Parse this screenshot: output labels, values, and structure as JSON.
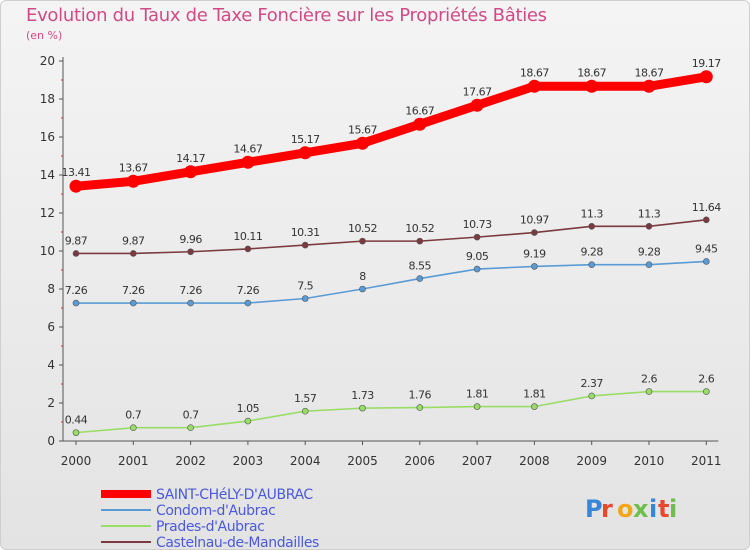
{
  "chart_data": {
    "type": "line",
    "title": "Evolution du Taux de Taxe Foncière sur les Propriétés Bâties",
    "unit_label": "(en %)",
    "xlabel": "",
    "ylabel": "",
    "x": [
      "2000",
      "2001",
      "2002",
      "2003",
      "2004",
      "2005",
      "2006",
      "2007",
      "2008",
      "2009",
      "2010",
      "2011"
    ],
    "ylim": [
      0,
      20
    ],
    "yticks": [
      "0",
      "2",
      "4",
      "6",
      "8",
      "10",
      "12",
      "14",
      "16",
      "18",
      "20"
    ],
    "grid": false,
    "legend_position": "bottom-left",
    "series": [
      {
        "name": "SAINT-CHéLY-D'AUBRAC",
        "color": "#ff0000",
        "values": [
          13.41,
          13.67,
          14.17,
          14.67,
          15.17,
          15.67,
          16.67,
          17.67,
          18.67,
          18.67,
          18.67,
          19.17
        ],
        "labels": [
          "13.41",
          "13.67",
          "14.17",
          "14.67",
          "15.17",
          "15.67",
          "16.67",
          "17.67",
          "18.67",
          "18.67",
          "18.67",
          "19.17"
        ]
      },
      {
        "name": "Condom-d'Aubrac",
        "color": "#5b9bd5",
        "values": [
          7.26,
          7.26,
          7.26,
          7.26,
          7.5,
          8,
          8.55,
          9.05,
          9.19,
          9.28,
          9.28,
          9.45
        ],
        "labels": [
          "7.26",
          "7.26",
          "7.26",
          "7.26",
          "7.5",
          "8",
          "8.55",
          "9.05",
          "9.19",
          "9.28",
          "9.28",
          "9.45"
        ]
      },
      {
        "name": "Prades-d'Aubrac",
        "color": "#99dd66",
        "values": [
          0.44,
          0.7,
          0.7,
          1.05,
          1.57,
          1.73,
          1.76,
          1.81,
          1.81,
          2.37,
          2.6,
          2.6
        ],
        "labels": [
          "0.44",
          "0.7",
          "0.7",
          "1.05",
          "1.57",
          "1.73",
          "1.76",
          "1.81",
          "1.81",
          "2.37",
          "2.6",
          "2.6"
        ]
      },
      {
        "name": "Castelnau-de-Mandailles",
        "color": "#7a3a3f",
        "values": [
          9.87,
          9.87,
          9.96,
          10.11,
          10.31,
          10.52,
          10.52,
          10.73,
          10.97,
          11.3,
          11.3,
          11.64
        ],
        "labels": [
          "9.87",
          "9.87",
          "9.96",
          "10.11",
          "10.31",
          "10.52",
          "10.52",
          "10.73",
          "10.97",
          "11.3",
          "11.3",
          "11.64"
        ]
      }
    ]
  },
  "legend_text_color": "#4a5ad8",
  "watermark": "Proxiti"
}
